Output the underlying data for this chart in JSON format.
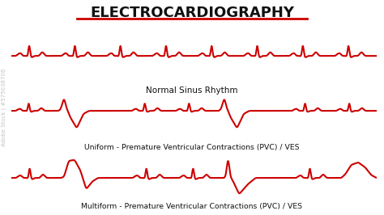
{
  "title": "ELECTROCARDIOGRAPHY",
  "title_fontsize": 13,
  "title_color": "#111111",
  "underline_color": "#cc0000",
  "bg_color": "#ffffff",
  "ecg_color": "#cc0000",
  "ecg_linewidth": 1.5,
  "label1": "Normal Sinus Rhythm",
  "label2": "Uniform - Premature Ventricular Contractions (PVC) / VES",
  "label3": "Multiform - Premature Ventricular Contractions (PVC) / VES",
  "label_fontsize": 7.5,
  "watermark": "Adobe Stock | #575038706",
  "watermark_color": "#aaaaaa",
  "watermark_fontsize": 5
}
